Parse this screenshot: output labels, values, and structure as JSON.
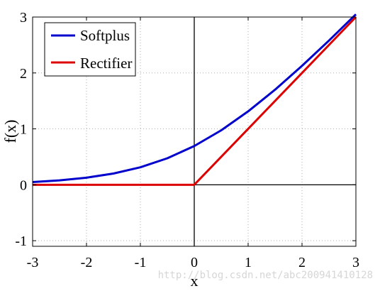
{
  "chart_data": {
    "type": "line",
    "title": "",
    "xlabel": "x",
    "ylabel": "f(x)",
    "xlim": [
      -3,
      3
    ],
    "ylim": [
      -1.1,
      3
    ],
    "xticks": [
      -3,
      -2,
      -1,
      0,
      1,
      2,
      3
    ],
    "yticks": [
      -1,
      0,
      1,
      2,
      3
    ],
    "xtick_labels": [
      "-3",
      "-2",
      "-1",
      "0",
      "1",
      "2",
      "3"
    ],
    "ytick_labels": [
      "-1",
      "0",
      "1",
      "2",
      "3"
    ],
    "grid": true,
    "legend_position": "top-left",
    "series": [
      {
        "name": "Softplus",
        "color": "#0000cc",
        "x": [
          -3,
          -2.5,
          -2,
          -1.5,
          -1,
          -0.5,
          0,
          0.5,
          1,
          1.5,
          2,
          2.5,
          3
        ],
        "y": [
          0.049,
          0.079,
          0.127,
          0.201,
          0.313,
          0.474,
          0.693,
          0.974,
          1.313,
          1.701,
          2.127,
          2.579,
          3.049
        ]
      },
      {
        "name": "Rectifier",
        "color": "#dd0000",
        "x": [
          -3,
          -2.5,
          -2,
          -1.5,
          -1,
          -0.5,
          0,
          0.5,
          1,
          1.5,
          2,
          2.5,
          3
        ],
        "y": [
          0,
          0,
          0,
          0,
          0,
          0,
          0,
          0.5,
          1,
          1.5,
          2,
          2.5,
          3
        ]
      }
    ]
  },
  "watermark": "http://blog.csdn.net/abc200941410128"
}
